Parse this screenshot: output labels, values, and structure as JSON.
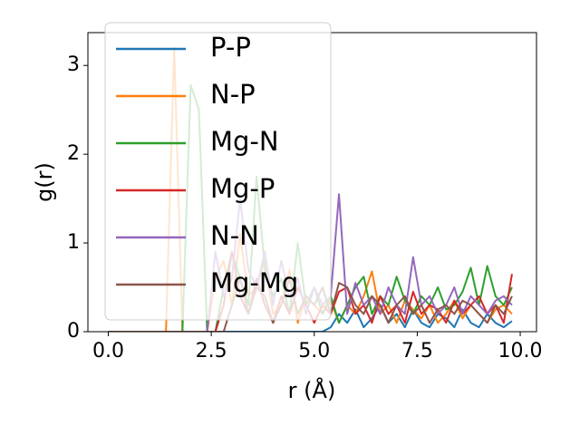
{
  "chart_data": {
    "type": "line",
    "xlabel": "r (Å)",
    "ylabel": "g(r)",
    "x": [
      0,
      0.2,
      0.4,
      0.6,
      0.8,
      1,
      1.2,
      1.4,
      1.6,
      1.8,
      2,
      2.2,
      2.4,
      2.6,
      2.8,
      3,
      3.2,
      3.4,
      3.6,
      3.8,
      4,
      4.2,
      4.4,
      4.6,
      4.8,
      5,
      5.2,
      5.4,
      5.6,
      5.8,
      6,
      6.2,
      6.4,
      6.6,
      6.8,
      7,
      7.2,
      7.4,
      7.6,
      7.8,
      8,
      8.2,
      8.4,
      8.6,
      8.8,
      9,
      9.2,
      9.4,
      9.6,
      9.8
    ],
    "series": [
      {
        "name": "P-P",
        "color": "#1f77b4",
        "values": [
          0,
          0,
          0,
          0,
          0,
          0,
          0,
          0,
          0,
          0,
          0,
          0,
          0,
          0,
          0,
          0,
          0,
          0,
          0,
          0,
          0,
          0,
          0,
          0,
          0,
          0,
          0,
          0.05,
          0.2,
          0.1,
          0.25,
          0.05,
          0.15,
          0.3,
          0.1,
          0.2,
          0.05,
          0.25,
          0.1,
          0.05,
          0.2,
          0.15,
          0.05,
          0.25,
          0.1,
          0.05,
          0.2,
          0.1,
          0.05,
          0.12
        ]
      },
      {
        "name": "N-P",
        "color": "#ff7f0e",
        "values": [
          0,
          0,
          0,
          0,
          0,
          0,
          0,
          0,
          3.2,
          0,
          0,
          0,
          0,
          0.6,
          0.8,
          0.3,
          1.1,
          0.4,
          0.5,
          0.8,
          0.2,
          0.3,
          0.7,
          0.1,
          0.4,
          0.3,
          0.2,
          0.35,
          0.1,
          0.3,
          0.2,
          0.4,
          0.68,
          0.2,
          0.3,
          0.1,
          0.35,
          0.25,
          0.15,
          0.3,
          0.1,
          0.2,
          0.35,
          0.15,
          0.3,
          0.2,
          0.1,
          0.25,
          0.3,
          0.2
        ]
      },
      {
        "name": "Mg-N",
        "color": "#2ca02c",
        "values": [
          0,
          0,
          0,
          0,
          0,
          0,
          0,
          0,
          0,
          0,
          2.78,
          2.5,
          0,
          0,
          0.5,
          0.9,
          0.6,
          0.3,
          1.75,
          0.7,
          0.4,
          0.6,
          0.2,
          1.0,
          0.3,
          0.5,
          0.2,
          0.4,
          0.1,
          0.3,
          0.5,
          0.62,
          0.2,
          0.4,
          0.3,
          0.62,
          0.35,
          0.2,
          0.4,
          0.3,
          0.5,
          0.25,
          0.3,
          0.45,
          0.72,
          0.3,
          0.74,
          0.4,
          0.3,
          0.5
        ]
      },
      {
        "name": "Mg-P",
        "color": "#d62728",
        "values": [
          0,
          0,
          0,
          0,
          0,
          0,
          0,
          0,
          0,
          0,
          0,
          0,
          0,
          0,
          0.3,
          0.9,
          0.4,
          0.2,
          0.6,
          0.3,
          0.1,
          0.4,
          0.2,
          0.5,
          0.3,
          0.1,
          0.3,
          0.2,
          0.45,
          0.5,
          0.2,
          0.3,
          0.1,
          0.4,
          0.2,
          0.3,
          0.1,
          0.45,
          0.2,
          0.3,
          0.25,
          0.1,
          0.35,
          0.2,
          0.3,
          0.4,
          0.2,
          0.3,
          0.1,
          0.65
        ]
      },
      {
        "name": "N-N",
        "color": "#9467bd",
        "values": [
          0,
          0,
          0,
          0,
          0,
          0,
          0,
          0,
          0,
          0,
          0,
          0,
          0,
          0.9,
          0.4,
          0.6,
          1.5,
          0.7,
          0.5,
          0.9,
          0.3,
          0.8,
          0.4,
          0.6,
          0.2,
          0.5,
          0.3,
          0.4,
          1.55,
          0.2,
          0.55,
          0.3,
          0.4,
          0.2,
          0.5,
          0.3,
          0.2,
          0.84,
          0.3,
          0.4,
          0.2,
          0.3,
          0.5,
          0.2,
          0.4,
          0.3,
          0.2,
          0.35,
          0.4,
          0.3
        ]
      },
      {
        "name": "Mg-Mg",
        "color": "#8c564b",
        "values": [
          0,
          0,
          0,
          0,
          0,
          0,
          0,
          0,
          0,
          0,
          0,
          0,
          0,
          0,
          0,
          0.3,
          0.6,
          0.2,
          0.5,
          0.4,
          0.1,
          0.3,
          0.6,
          0.2,
          0.4,
          0.3,
          0.5,
          0.2,
          0.55,
          0.5,
          0.3,
          0.2,
          0.4,
          0.3,
          0.1,
          0.3,
          0.4,
          0.2,
          0.3,
          0.1,
          0.25,
          0.3,
          0.2,
          0.35,
          0.3,
          0.2,
          0.1,
          0.3,
          0.2,
          0.4
        ]
      }
    ],
    "xlim": [
      -0.495,
      10.395
    ],
    "ylim": [
      0,
      3.37
    ],
    "xticks": [
      {
        "value": 0,
        "label": "0.0"
      },
      2.5,
      {
        "value": 5,
        "label": "5.0"
      },
      7.5,
      {
        "value": 10,
        "label": "10.0"
      }
    ],
    "yticks": [
      0,
      1,
      2,
      3
    ],
    "legend": "upper left"
  }
}
